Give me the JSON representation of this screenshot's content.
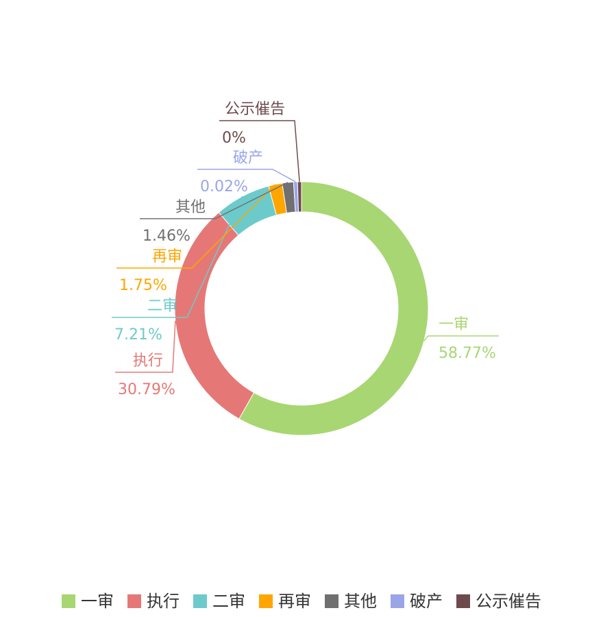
{
  "chart_data": {
    "type": "pie",
    "variant": "donut",
    "categories": [
      "一审",
      "执行",
      "二审",
      "再审",
      "其他",
      "破产",
      "公示催告"
    ],
    "values": [
      58.77,
      30.79,
      7.21,
      1.75,
      1.46,
      0.02,
      0
    ],
    "labels": [
      "58.77%",
      "30.79%",
      "7.21%",
      "1.75%",
      "1.46%",
      "0.02%",
      "0%"
    ],
    "colors": [
      "#a8d672",
      "#e57876",
      "#6ccbca",
      "#ffa500",
      "#707070",
      "#9aa5e8",
      "#6e4a4c"
    ],
    "unit": "%",
    "legend_position": "bottom"
  },
  "legend": {
    "items": [
      {
        "label": "一审",
        "color": "#a8d672"
      },
      {
        "label": "执行",
        "color": "#e57876"
      },
      {
        "label": "二审",
        "color": "#6ccbca"
      },
      {
        "label": "再审",
        "color": "#ffa500"
      },
      {
        "label": "其他",
        "color": "#707070"
      },
      {
        "label": "破产",
        "color": "#9aa5e8"
      },
      {
        "label": "公示催告",
        "color": "#6e4a4c"
      }
    ]
  }
}
